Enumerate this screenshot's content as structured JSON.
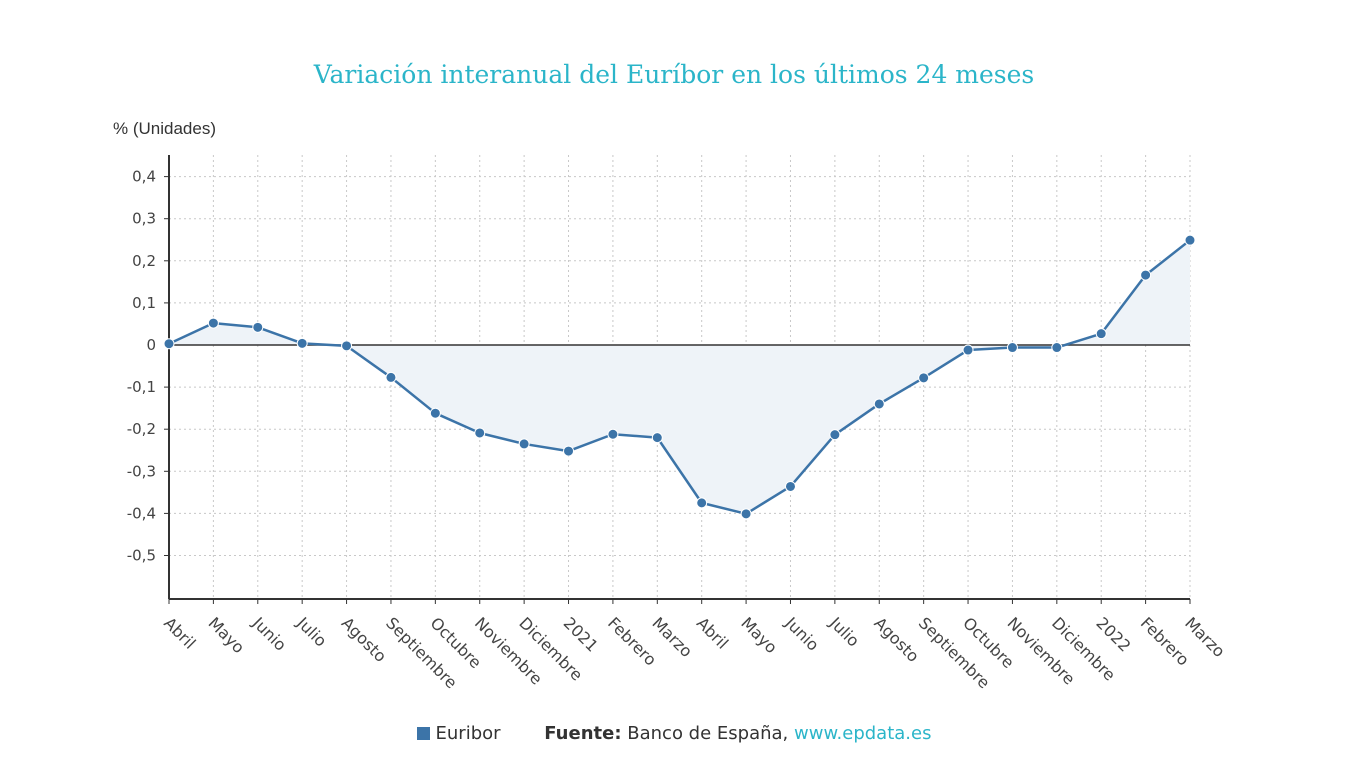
{
  "chart_data": {
    "type": "area",
    "title": "Variación interanual del Euríbor en los últimos 24 meses",
    "ylabel": "% (Unidades)",
    "xlabel": "",
    "ylim": [
      -0.6,
      0.45
    ],
    "yticks": [
      0.4,
      0.3,
      0.2,
      0.1,
      0,
      -0.1,
      -0.2,
      -0.3,
      -0.4,
      -0.5
    ],
    "ytick_labels": [
      "0,4",
      "0,3",
      "0,2",
      "0,1",
      "0",
      "-0,1",
      "-0,2",
      "-0,3",
      "-0,4",
      "-0,5"
    ],
    "grid": true,
    "categories": [
      "Abril",
      "Mayo",
      "Junio",
      "Julio",
      "Agosto",
      "Septiembre",
      "Octubre",
      "Noviembre",
      "Diciembre",
      "2021",
      "Febrero",
      "Marzo",
      "Abril",
      "Mayo",
      "Junio",
      "Julio",
      "Agosto",
      "Septiembre",
      "Octubre",
      "Noviembre",
      "Diciembre",
      "2022",
      "Febrero",
      "Marzo"
    ],
    "series": [
      {
        "name": "Euribor",
        "color": "#3c74a8",
        "fill": "#eef3f8",
        "values": [
          0.003,
          0.052,
          0.042,
          0.004,
          -0.002,
          -0.077,
          -0.162,
          -0.209,
          -0.235,
          -0.252,
          -0.212,
          -0.22,
          -0.375,
          -0.401,
          -0.336,
          -0.213,
          -0.14,
          -0.078,
          -0.012,
          -0.006,
          -0.006,
          0.027,
          0.166,
          0.249
        ]
      }
    ],
    "legend_position": "bottom"
  },
  "legend": {
    "series_label": "Euribor",
    "source_label": "Fuente:",
    "source_text": "Banco de España,",
    "source_link": "www.epdata.es"
  }
}
